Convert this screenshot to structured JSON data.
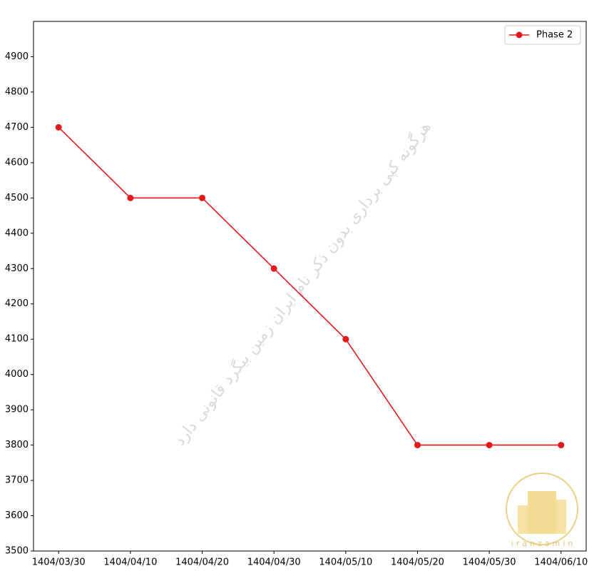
{
  "chart_data": {
    "type": "line",
    "categories": [
      "1404/03/30",
      "1404/04/10",
      "1404/04/20",
      "1404/04/30",
      "1404/05/10",
      "1404/05/20",
      "1404/05/30",
      "1404/06/10"
    ],
    "series": [
      {
        "name": "Phase 2",
        "color": "#e31a1c",
        "values": [
          4700,
          4500,
          4500,
          4300,
          4100,
          3800,
          3800,
          3800
        ]
      }
    ],
    "ylim": [
      3500,
      5000
    ],
    "yticks": [
      3500,
      3600,
      3700,
      3800,
      3900,
      4000,
      4100,
      4200,
      4300,
      4400,
      4500,
      4600,
      4700,
      4800,
      4900
    ],
    "legend": "upper right",
    "watermark": "هرگونه کپی برداری بدون ذکر نام ایران زمین بیگرد قانونی دارد",
    "logo_text": "iranzamin"
  }
}
